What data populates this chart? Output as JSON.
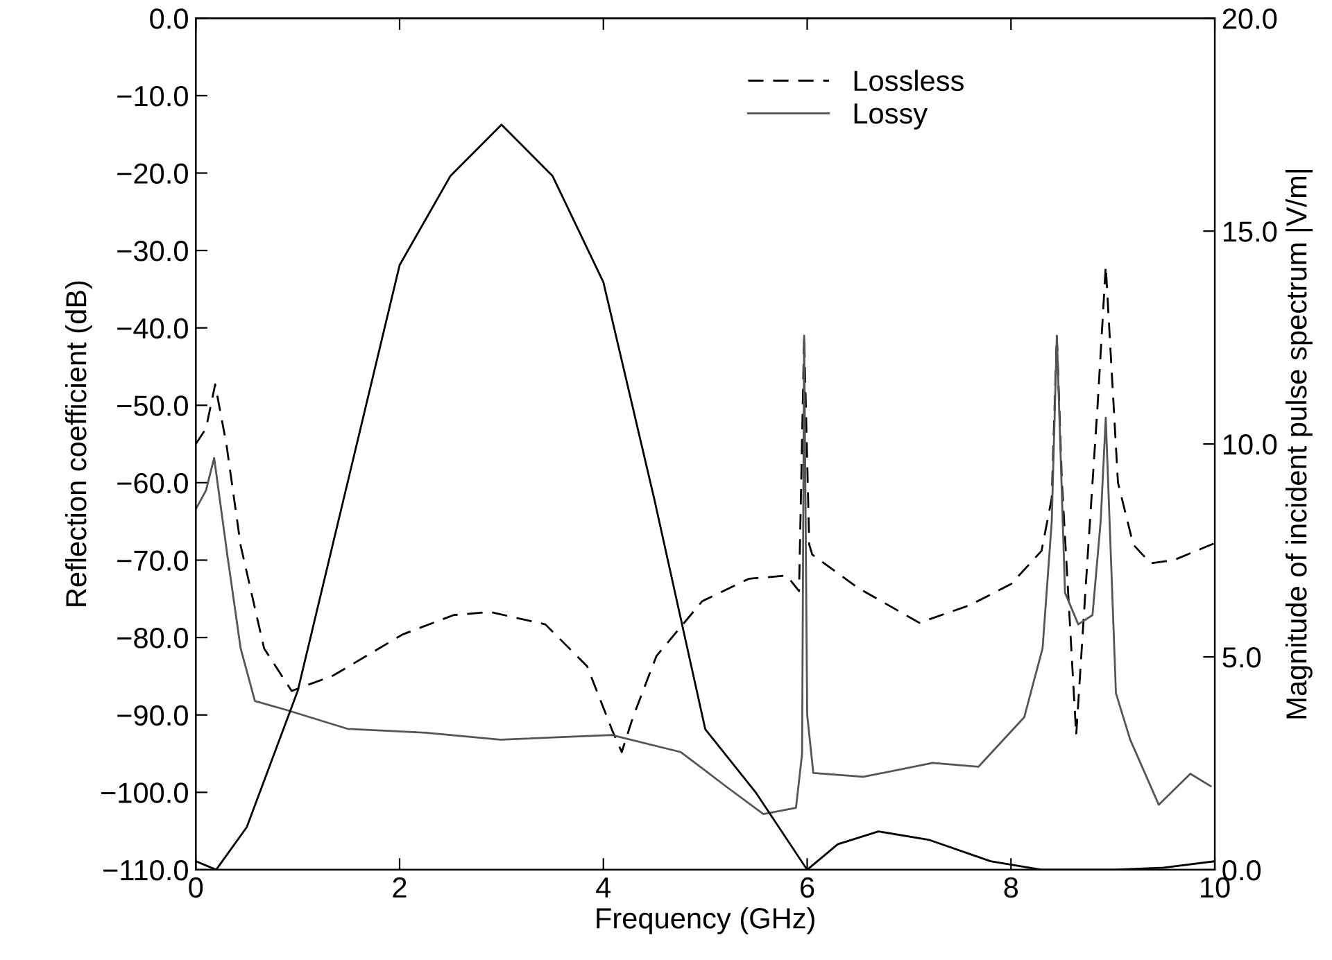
{
  "chart_data": {
    "type": "line",
    "xlabel": "Frequency (GHz)",
    "ylabel": "Reflection coefficient (dB)",
    "y2label": "Magnitude of incident pulse spectrum |V/m|",
    "xlim": [
      0,
      10
    ],
    "xticks": [
      0,
      2,
      4,
      6,
      8,
      10
    ],
    "ylim": [
      -110,
      0
    ],
    "yticks": [
      {
        "value": 0,
        "label": "0.0"
      },
      {
        "value": -10,
        "label": "−10.0"
      },
      {
        "value": -20,
        "label": "−20.0"
      },
      {
        "value": -30,
        "label": "−30.0"
      },
      {
        "value": -40,
        "label": "−40.0"
      },
      {
        "value": -50,
        "label": "−50.0"
      },
      {
        "value": -60,
        "label": "−60.0"
      },
      {
        "value": -70,
        "label": "−70.0"
      },
      {
        "value": -80,
        "label": "−80.0"
      },
      {
        "value": -90,
        "label": "−90.0"
      },
      {
        "value": -100,
        "label": "−100.0"
      },
      {
        "value": -110,
        "label": "−110.0"
      }
    ],
    "y2lim": [
      0,
      20
    ],
    "y2ticks": [
      {
        "value": 0,
        "label": "0.0"
      },
      {
        "value": 5,
        "label": "5.0"
      },
      {
        "value": 10,
        "label": "10.0"
      },
      {
        "value": 15,
        "label": "15.0"
      },
      {
        "value": 20,
        "label": "20.0"
      }
    ],
    "legend": "top right",
    "grid": false,
    "series": [
      {
        "name": "Lossless",
        "color": "#000000",
        "line_style": "dashed",
        "x": [
          0,
          0.1,
          0.19,
          0.3,
          0.44,
          0.67,
          0.94,
          1.35,
          2.03,
          2.53,
          2.89,
          3.43,
          3.84,
          4.09,
          4.18,
          4.29,
          4.52,
          4.97,
          5.43,
          5.8,
          5.92,
          5.97,
          6.02,
          6.05,
          6.5,
          7.1,
          7.6,
          8.0,
          8.3,
          8.4,
          8.45,
          8.5,
          8.64,
          8.75,
          8.85,
          8.93,
          9.05,
          9.2,
          9.37,
          9.6,
          10
        ],
        "values": [
          -55,
          -53,
          -47.3,
          -55,
          -68.1,
          -81.4,
          -86.9,
          -84.9,
          -79.6,
          -77.1,
          -76.7,
          -78.3,
          -83.7,
          -92.1,
          -94.8,
          -90.3,
          -82.4,
          -75.3,
          -72.4,
          -72,
          -74,
          -41,
          -68,
          -69.3,
          -73.6,
          -78.1,
          -75.8,
          -73.1,
          -68.8,
          -62,
          -41,
          -60,
          -92.6,
          -70,
          -50,
          -32,
          -60,
          -68,
          -70.4,
          -70,
          -67.8
        ]
      },
      {
        "name": "Lossy",
        "color": "#555555",
        "line_style": "solid",
        "x": [
          0,
          0.1,
          0.18,
          0.31,
          0.44,
          0.58,
          0.9,
          1.49,
          2.26,
          2.99,
          4.08,
          4.76,
          5.21,
          5.57,
          5.89,
          5.95,
          5.97,
          6.0,
          6.06,
          6.55,
          7.23,
          7.68,
          8.13,
          8.31,
          8.4,
          8.45,
          8.53,
          8.66,
          8.8,
          8.88,
          8.93,
          9.03,
          9.17,
          9.45,
          9.76,
          9.96
        ],
        "values": [
          -63.4,
          -61,
          -56.8,
          -69.4,
          -81.4,
          -88.2,
          -89.4,
          -91.8,
          -92.3,
          -93.2,
          -92.6,
          -94.8,
          -99.3,
          -102.8,
          -102,
          -95,
          -41,
          -90,
          -97.5,
          -98,
          -96.2,
          -96.7,
          -90.3,
          -81.4,
          -65,
          -41,
          -74.2,
          -78.3,
          -77.1,
          -65,
          -51.6,
          -87.2,
          -93.2,
          -101.6,
          -97.6,
          -99.2
        ]
      },
      {
        "axis": "y2",
        "color": "#000000",
        "line_style": "solid",
        "x": [
          0,
          0.2,
          0.5,
          1.0,
          1.5,
          2.0,
          2.5,
          3.0,
          3.5,
          4.0,
          4.5,
          5.0,
          5.5,
          6.0,
          6.3,
          6.7,
          7.2,
          7.8,
          8.3,
          9.0,
          9.5,
          10
        ],
        "values": [
          0.2,
          0,
          1.0,
          4.2,
          9.2,
          14.2,
          16.3,
          17.5,
          16.3,
          13.8,
          8.7,
          3.3,
          1.8,
          0,
          0.6,
          0.9,
          0.7,
          0.2,
          0,
          0,
          0.05,
          0.2
        ]
      }
    ]
  }
}
